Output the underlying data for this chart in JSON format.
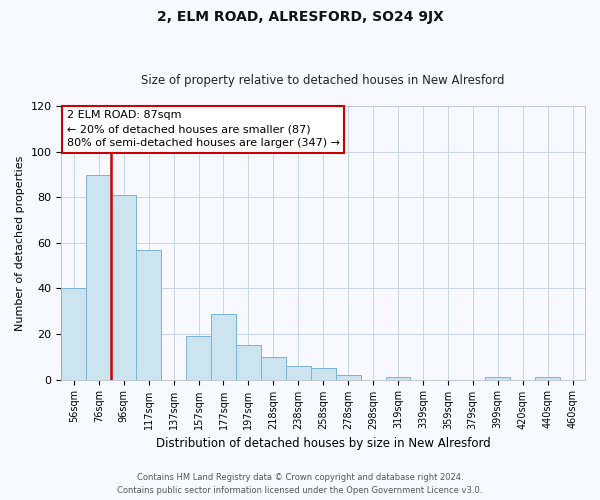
{
  "title": "2, ELM ROAD, ALRESFORD, SO24 9JX",
  "subtitle": "Size of property relative to detached houses in New Alresford",
  "xlabel": "Distribution of detached houses by size in New Alresford",
  "ylabel": "Number of detached properties",
  "categories": [
    "56sqm",
    "76sqm",
    "96sqm",
    "117sqm",
    "137sqm",
    "157sqm",
    "177sqm",
    "197sqm",
    "218sqm",
    "238sqm",
    "258sqm",
    "278sqm",
    "298sqm",
    "319sqm",
    "339sqm",
    "359sqm",
    "379sqm",
    "399sqm",
    "420sqm",
    "440sqm",
    "460sqm"
  ],
  "values": [
    40,
    90,
    81,
    57,
    0,
    19,
    29,
    15,
    10,
    6,
    5,
    2,
    0,
    1,
    0,
    0,
    0,
    1,
    0,
    1,
    0
  ],
  "bar_color": "#cce3f0",
  "bar_edge_color": "#7ab4d4",
  "marker_color": "#cc0000",
  "ylim": [
    0,
    120
  ],
  "yticks": [
    0,
    20,
    40,
    60,
    80,
    100,
    120
  ],
  "annotation_title": "2 ELM ROAD: 87sqm",
  "annotation_line1": "← 20% of detached houses are smaller (87)",
  "annotation_line2": "80% of semi-detached houses are larger (347) →",
  "footer_line1": "Contains HM Land Registry data © Crown copyright and database right 2024.",
  "footer_line2": "Contains public sector information licensed under the Open Government Licence v3.0.",
  "background_color": "#f8f9ff",
  "grid_color": "#c8d4e8",
  "title_fontsize": 10,
  "subtitle_fontsize": 8.5,
  "ylabel_fontsize": 8,
  "xlabel_fontsize": 8.5,
  "tick_fontsize": 7,
  "footer_fontsize": 6,
  "annotation_fontsize": 8
}
